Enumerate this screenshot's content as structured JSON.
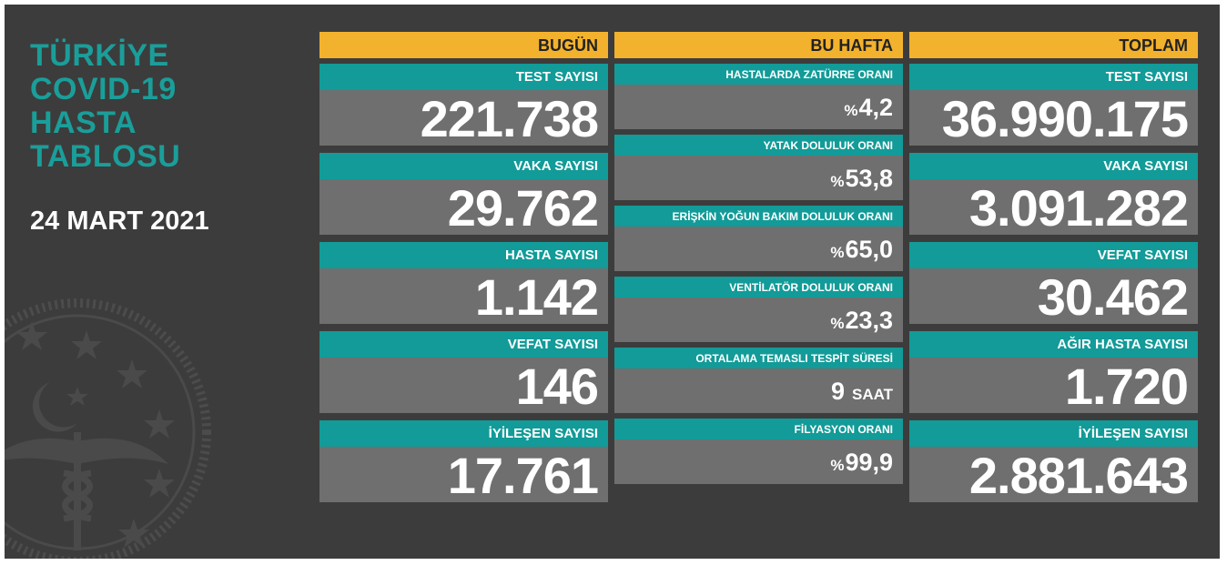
{
  "title_lines": [
    "TÜRKİYE",
    "COVID-19",
    "HASTA",
    "TABLOSU"
  ],
  "date": "24 MART 2021",
  "colors": {
    "header": "#f3b22d",
    "label": "#129b98",
    "value_bg": "#6f6f6f",
    "panel": "#3c3c3c"
  },
  "emblem_icon": "ministry-of-health-emblem",
  "today": {
    "header": "BUGÜN",
    "items": [
      {
        "label": "TEST SAYISI",
        "value": "221.738"
      },
      {
        "label": "VAKA SAYISI",
        "value": "29.762"
      },
      {
        "label": "HASTA SAYISI",
        "value": "1.142"
      },
      {
        "label": "VEFAT SAYISI",
        "value": "146"
      },
      {
        "label": "İYİLEŞEN SAYISI",
        "value": "17.761"
      }
    ]
  },
  "week": {
    "header": "BU HAFTA",
    "items": [
      {
        "label": "HASTALARDA ZATÜRRE ORANI",
        "prefix": "%",
        "value": "4,2"
      },
      {
        "label": "YATAK DOLULUK ORANI",
        "prefix": "%",
        "value": "53,8"
      },
      {
        "label": "ERİŞKİN YOĞUN BAKIM DOLULUK ORANI",
        "prefix": "%",
        "value": "65,0"
      },
      {
        "label": "VENTİLATÖR DOLULUK ORANI",
        "prefix": "%",
        "value": "23,3"
      },
      {
        "label": "ORTALAMA TEMASLI TESPİT SÜRESİ",
        "value": "9",
        "unit": "SAAT"
      },
      {
        "label": "FİLYASYON ORANI",
        "prefix": "%",
        "value": "99,9"
      }
    ]
  },
  "total": {
    "header": "TOPLAM",
    "items": [
      {
        "label": "TEST SAYISI",
        "value": "36.990.175"
      },
      {
        "label": "VAKA SAYISI",
        "value": "3.091.282"
      },
      {
        "label": "VEFAT SAYISI",
        "value": "30.462"
      },
      {
        "label": "AĞIR HASTA SAYISI",
        "value": "1.720"
      },
      {
        "label": "İYİLEŞEN SAYISI",
        "value": "2.881.643"
      }
    ]
  }
}
